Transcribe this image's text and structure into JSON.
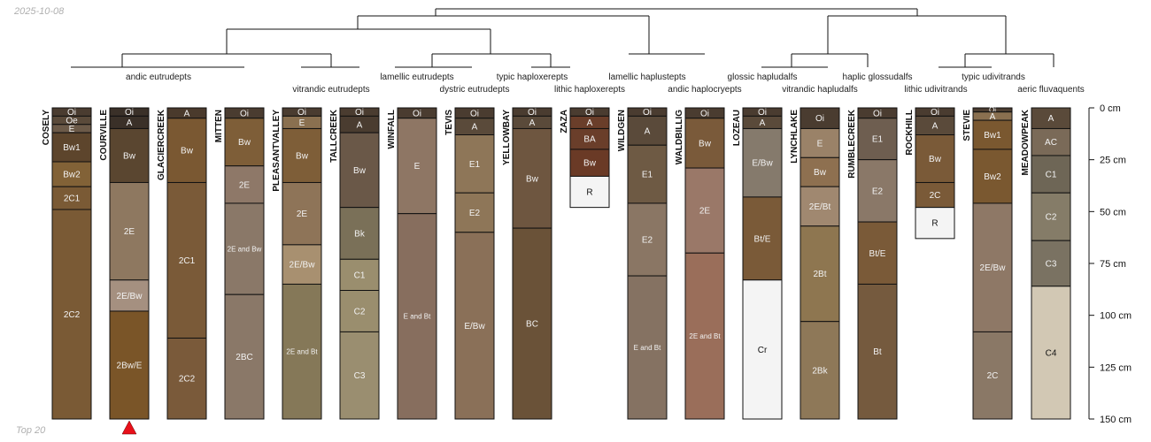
{
  "header": {
    "date": "2025-10-08"
  },
  "footer": {
    "caption": "Top 20"
  },
  "axis": {
    "unit": "cm",
    "ticks": [
      0,
      25,
      50,
      75,
      100,
      125,
      150
    ],
    "max_depth": 150
  },
  "marker": {
    "profile": "COURVILLE",
    "color": "#e8101a"
  },
  "taxa": [
    {
      "label": "andic eutrudepts"
    },
    {
      "label": "vitrandic eutrudepts"
    },
    {
      "label": "lamellic eutrudepts"
    },
    {
      "label": "dystric eutrudepts"
    },
    {
      "label": "typic haploxerepts"
    },
    {
      "label": "lithic haploxerepts"
    },
    {
      "label": "lamellic haplustepts"
    },
    {
      "label": "andic haplocryepts"
    },
    {
      "label": "glossic hapludalfs"
    },
    {
      "label": "vitrandic hapludalfs"
    },
    {
      "label": "haplic glossudalfs"
    },
    {
      "label": "lithic udivitrands"
    },
    {
      "label": "typic udivitrands"
    },
    {
      "label": "aeric fluvaquents"
    }
  ],
  "profiles": [
    {
      "name": "COSELY",
      "horizons": [
        {
          "name": "Oi",
          "top": 0,
          "bottom": 4,
          "color": "#4a3c30"
        },
        {
          "name": "Oe",
          "top": 4,
          "bottom": 8,
          "color": "#5a4a3a"
        },
        {
          "name": "E",
          "top": 8,
          "bottom": 12,
          "color": "#6c5a48"
        },
        {
          "name": "Bw1",
          "top": 12,
          "bottom": 26,
          "color": "#5d452c"
        },
        {
          "name": "Bw2",
          "top": 26,
          "bottom": 38,
          "color": "#826237"
        },
        {
          "name": "2C1",
          "top": 38,
          "bottom": 49,
          "color": "#7a5a35"
        },
        {
          "name": "2C2",
          "top": 49,
          "bottom": 150,
          "color": "#7a5a35"
        }
      ]
    },
    {
      "name": "COURVILLE",
      "horizons": [
        {
          "name": "Oi",
          "top": 0,
          "bottom": 4,
          "color": "#3a3028"
        },
        {
          "name": "A",
          "top": 4,
          "bottom": 10,
          "color": "#3a3028"
        },
        {
          "name": "Bw",
          "top": 10,
          "bottom": 36,
          "color": "#5a4630"
        },
        {
          "name": "2E",
          "top": 36,
          "bottom": 83,
          "color": "#8e7860"
        },
        {
          "name": "2E/Bw",
          "top": 83,
          "bottom": 98,
          "color": "#a59080"
        },
        {
          "name": "2Bw/E",
          "top": 98,
          "bottom": 150,
          "color": "#7a5528"
        }
      ]
    },
    {
      "name": "GLACIERCREEK",
      "horizons": [
        {
          "name": "A",
          "top": 0,
          "bottom": 5,
          "color": "#4a3a2c"
        },
        {
          "name": "Bw",
          "top": 5,
          "bottom": 36,
          "color": "#7a5832"
        },
        {
          "name": "2C1",
          "top": 36,
          "bottom": 111,
          "color": "#7a5a38"
        },
        {
          "name": "2C2",
          "top": 111,
          "bottom": 150,
          "color": "#7a5a3a"
        }
      ]
    },
    {
      "name": "MITTEN",
      "horizons": [
        {
          "name": "Oi",
          "top": 0,
          "bottom": 5,
          "color": "#4a3c30"
        },
        {
          "name": "Bw",
          "top": 5,
          "bottom": 28,
          "color": "#7e5e38"
        },
        {
          "name": "2E",
          "top": 28,
          "bottom": 46,
          "color": "#8e7868"
        },
        {
          "name": "2E and Bw",
          "top": 46,
          "bottom": 90,
          "color": "#8a7868"
        },
        {
          "name": "2BC",
          "top": 90,
          "bottom": 150,
          "color": "#8a7868"
        }
      ]
    },
    {
      "name": "PLEASANTVALLEY",
      "horizons": [
        {
          "name": "Oi",
          "top": 0,
          "bottom": 4,
          "color": "#4a3c30"
        },
        {
          "name": "E",
          "top": 4,
          "bottom": 10,
          "color": "#8a7050"
        },
        {
          "name": "Bw",
          "top": 10,
          "bottom": 36,
          "color": "#7e5e38"
        },
        {
          "name": "2E",
          "top": 36,
          "bottom": 66,
          "color": "#8e7458"
        },
        {
          "name": "2E/Bw",
          "top": 66,
          "bottom": 85,
          "color": "#a89070"
        },
        {
          "name": "2E and Bt",
          "top": 85,
          "bottom": 150,
          "color": "#857858"
        }
      ]
    },
    {
      "name": "TALLCREEK",
      "horizons": [
        {
          "name": "Oi",
          "top": 0,
          "bottom": 4,
          "color": "#4a3c30"
        },
        {
          "name": "A",
          "top": 4,
          "bottom": 12,
          "color": "#4a3c30"
        },
        {
          "name": "Bw",
          "top": 12,
          "bottom": 48,
          "color": "#6a5848"
        },
        {
          "name": "Bk",
          "top": 48,
          "bottom": 73,
          "color": "#7a7058"
        },
        {
          "name": "C1",
          "top": 73,
          "bottom": 88,
          "color": "#9a8e6e"
        },
        {
          "name": "C2",
          "top": 88,
          "bottom": 108,
          "color": "#9a8e6e"
        },
        {
          "name": "C3",
          "top": 108,
          "bottom": 150,
          "color": "#9a8e70"
        }
      ]
    },
    {
      "name": "WINFALL",
      "horizons": [
        {
          "name": "Oi",
          "top": 0,
          "bottom": 5,
          "color": "#4a3c30"
        },
        {
          "name": "E",
          "top": 5,
          "bottom": 51,
          "color": "#8e7664"
        },
        {
          "name": "E and Bt",
          "top": 51,
          "bottom": 150,
          "color": "#876e5e"
        }
      ]
    },
    {
      "name": "TEVIS",
      "horizons": [
        {
          "name": "Oi",
          "top": 0,
          "bottom": 5,
          "color": "#4a3c30"
        },
        {
          "name": "A",
          "top": 5,
          "bottom": 13,
          "color": "#5a4a3a"
        },
        {
          "name": "E1",
          "top": 13,
          "bottom": 41,
          "color": "#8e7658"
        },
        {
          "name": "E2",
          "top": 41,
          "bottom": 60,
          "color": "#8e7658"
        },
        {
          "name": "E/Bw",
          "top": 60,
          "bottom": 150,
          "color": "#8a7058"
        }
      ]
    },
    {
      "name": "YELLOWBAY",
      "horizons": [
        {
          "name": "Oi",
          "top": 0,
          "bottom": 4,
          "color": "#4a3c30"
        },
        {
          "name": "A",
          "top": 4,
          "bottom": 10,
          "color": "#5a4a3a"
        },
        {
          "name": "Bw",
          "top": 10,
          "bottom": 58,
          "color": "#6e5640"
        },
        {
          "name": "BC",
          "top": 58,
          "bottom": 150,
          "color": "#6a5238"
        }
      ]
    },
    {
      "name": "ZAZA",
      "horizons": [
        {
          "name": "Oi",
          "top": 0,
          "bottom": 4,
          "color": "#4a3c30"
        },
        {
          "name": "A",
          "top": 4,
          "bottom": 10,
          "color": "#6a3e2a"
        },
        {
          "name": "BA",
          "top": 10,
          "bottom": 20,
          "color": "#6a3e2a"
        },
        {
          "name": "Bw",
          "top": 20,
          "bottom": 33,
          "color": "#6a3a26"
        },
        {
          "name": "R",
          "top": 33,
          "bottom": 48,
          "color": "#f4f4f4"
        }
      ]
    },
    {
      "name": "WILDGEN",
      "horizons": [
        {
          "name": "Oi",
          "top": 0,
          "bottom": 4,
          "color": "#4a3c30"
        },
        {
          "name": "A",
          "top": 4,
          "bottom": 18,
          "color": "#5a4a3a"
        },
        {
          "name": "E1",
          "top": 18,
          "bottom": 46,
          "color": "#6e5a44"
        },
        {
          "name": "E2",
          "top": 46,
          "bottom": 81,
          "color": "#8a7664"
        },
        {
          "name": "E and Bt",
          "top": 81,
          "bottom": 150,
          "color": "#857262"
        }
      ]
    },
    {
      "name": "WALDBILLIG",
      "horizons": [
        {
          "name": "Oi",
          "top": 0,
          "bottom": 5,
          "color": "#4a3c30"
        },
        {
          "name": "Bw",
          "top": 5,
          "bottom": 29,
          "color": "#7a5a3a"
        },
        {
          "name": "2E",
          "top": 29,
          "bottom": 70,
          "color": "#9a7868"
        },
        {
          "name": "2E and Bt",
          "top": 70,
          "bottom": 150,
          "color": "#9a6e5a"
        }
      ]
    },
    {
      "name": "LOZEAU",
      "horizons": [
        {
          "name": "Oi",
          "top": 0,
          "bottom": 4,
          "color": "#4a3c30"
        },
        {
          "name": "A",
          "top": 4,
          "bottom": 10,
          "color": "#5a4a3a"
        },
        {
          "name": "E/Bw",
          "top": 10,
          "bottom": 43,
          "color": "#857a6c"
        },
        {
          "name": "Bt/E",
          "top": 43,
          "bottom": 83,
          "color": "#7a5a38"
        },
        {
          "name": "Cr",
          "top": 83,
          "bottom": 150,
          "color": "#f4f4f4"
        }
      ]
    },
    {
      "name": "LYNCHLAKE",
      "horizons": [
        {
          "name": "Oi",
          "top": 0,
          "bottom": 10,
          "color": "#4a3c30"
        },
        {
          "name": "E",
          "top": 10,
          "bottom": 24,
          "color": "#9a8268"
        },
        {
          "name": "Bw",
          "top": 24,
          "bottom": 38,
          "color": "#8e7050"
        },
        {
          "name": "2E/Bt",
          "top": 38,
          "bottom": 57,
          "color": "#a08870"
        },
        {
          "name": "2Bt",
          "top": 57,
          "bottom": 103,
          "color": "#8e7650"
        },
        {
          "name": "2Bk",
          "top": 103,
          "bottom": 150,
          "color": "#8e7858"
        }
      ]
    },
    {
      "name": "RUMBLECREEK",
      "horizons": [
        {
          "name": "Oi",
          "top": 0,
          "bottom": 5,
          "color": "#4a3c30"
        },
        {
          "name": "E1",
          "top": 5,
          "bottom": 25,
          "color": "#6e5e50"
        },
        {
          "name": "E2",
          "top": 25,
          "bottom": 55,
          "color": "#8a7868"
        },
        {
          "name": "Bt/E",
          "top": 55,
          "bottom": 85,
          "color": "#7a5a38"
        },
        {
          "name": "Bt",
          "top": 85,
          "bottom": 150,
          "color": "#755a3e"
        }
      ]
    },
    {
      "name": "ROCKHILL",
      "horizons": [
        {
          "name": "Oi",
          "top": 0,
          "bottom": 4,
          "color": "#4a3c30"
        },
        {
          "name": "A",
          "top": 4,
          "bottom": 13,
          "color": "#5a4a3a"
        },
        {
          "name": "Bw",
          "top": 13,
          "bottom": 36,
          "color": "#7a5a38"
        },
        {
          "name": "2C",
          "top": 36,
          "bottom": 48,
          "color": "#7a5a38"
        },
        {
          "name": "R",
          "top": 48,
          "bottom": 63,
          "color": "#f4f4f4"
        }
      ]
    },
    {
      "name": "STEVIE",
      "horizons": [
        {
          "name": "Oi",
          "top": 0,
          "bottom": 2,
          "color": "#4a3c30"
        },
        {
          "name": "A",
          "top": 2,
          "bottom": 6,
          "color": "#8a7050"
        },
        {
          "name": "Bw1",
          "top": 6,
          "bottom": 20,
          "color": "#7a5830"
        },
        {
          "name": "Bw2",
          "top": 20,
          "bottom": 46,
          "color": "#7a5830"
        },
        {
          "name": "2E/Bw",
          "top": 46,
          "bottom": 108,
          "color": "#8e7866"
        },
        {
          "name": "2C",
          "top": 108,
          "bottom": 150,
          "color": "#8a7866"
        }
      ]
    },
    {
      "name": "MEADOWPEAK",
      "horizons": [
        {
          "name": "A",
          "top": 0,
          "bottom": 10,
          "color": "#5a4a3a"
        },
        {
          "name": "AC",
          "top": 10,
          "bottom": 23,
          "color": "#7a6a58"
        },
        {
          "name": "C1",
          "top": 23,
          "bottom": 41,
          "color": "#6e6656"
        },
        {
          "name": "C2",
          "top": 41,
          "bottom": 64,
          "color": "#857c68"
        },
        {
          "name": "C3",
          "top": 64,
          "bottom": 86,
          "color": "#7a7262"
        },
        {
          "name": "C4",
          "top": 86,
          "bottom": 150,
          "color": "#d2c8b4"
        }
      ]
    }
  ]
}
